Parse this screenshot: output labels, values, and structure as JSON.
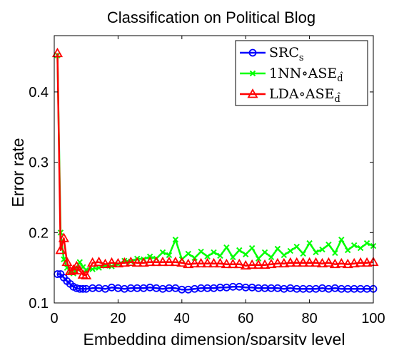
{
  "chart_data": {
    "type": "line",
    "title": "Classification on Political Blog",
    "xlabel": "Embedding dimension/sparsity level",
    "ylabel": "Error rate",
    "xlim": [
      0,
      100
    ],
    "ylim": [
      0.1,
      0.48
    ],
    "xticks": [
      0,
      20,
      40,
      60,
      80,
      100
    ],
    "xtick_labels": [
      "0",
      "20",
      "40",
      "60",
      "80",
      "100"
    ],
    "yticks": [
      0.1,
      0.2,
      0.3,
      0.4
    ],
    "ytick_labels": [
      "0.1",
      "0.2",
      "0.3",
      "0.4"
    ],
    "grid": false,
    "legend_position": "top-right",
    "series": [
      {
        "name": "SRC",
        "name_subscript": "s",
        "color": "#0000ff",
        "marker": "circle",
        "x": [
          1,
          2,
          3,
          4,
          5,
          6,
          7,
          8,
          9,
          10,
          12,
          14,
          16,
          18,
          20,
          22,
          24,
          26,
          28,
          30,
          32,
          34,
          36,
          38,
          40,
          42,
          44,
          46,
          48,
          50,
          52,
          54,
          56,
          58,
          60,
          62,
          64,
          66,
          68,
          70,
          72,
          74,
          76,
          78,
          80,
          82,
          84,
          86,
          88,
          90,
          92,
          94,
          96,
          98,
          100
        ],
        "y": [
          0.141,
          0.141,
          0.136,
          0.131,
          0.127,
          0.123,
          0.121,
          0.12,
          0.12,
          0.12,
          0.121,
          0.121,
          0.12,
          0.122,
          0.121,
          0.12,
          0.121,
          0.121,
          0.121,
          0.122,
          0.121,
          0.12,
          0.121,
          0.121,
          0.119,
          0.119,
          0.12,
          0.121,
          0.121,
          0.121,
          0.122,
          0.122,
          0.123,
          0.123,
          0.122,
          0.122,
          0.121,
          0.121,
          0.121,
          0.121,
          0.12,
          0.121,
          0.12,
          0.12,
          0.12,
          0.12,
          0.121,
          0.12,
          0.121,
          0.12,
          0.12,
          0.12,
          0.12,
          0.12,
          0.12
        ]
      },
      {
        "name": "1NN∘ASE",
        "name_subscript": "d̂",
        "color": "#00ff00",
        "marker": "x",
        "x": [
          1,
          2,
          3,
          4,
          5,
          6,
          7,
          8,
          9,
          10,
          12,
          14,
          16,
          18,
          20,
          22,
          24,
          26,
          28,
          30,
          32,
          34,
          36,
          38,
          40,
          42,
          44,
          46,
          48,
          50,
          52,
          54,
          56,
          58,
          60,
          62,
          64,
          66,
          68,
          70,
          72,
          74,
          76,
          78,
          80,
          82,
          84,
          86,
          88,
          90,
          92,
          94,
          96,
          98,
          100
        ],
        "y": [
          0.452,
          0.2,
          0.162,
          0.15,
          0.145,
          0.142,
          0.149,
          0.158,
          0.151,
          0.147,
          0.148,
          0.15,
          0.153,
          0.152,
          0.155,
          0.16,
          0.159,
          0.163,
          0.162,
          0.166,
          0.163,
          0.172,
          0.168,
          0.19,
          0.162,
          0.17,
          0.164,
          0.173,
          0.166,
          0.172,
          0.167,
          0.179,
          0.165,
          0.175,
          0.169,
          0.178,
          0.163,
          0.172,
          0.165,
          0.177,
          0.168,
          0.174,
          0.18,
          0.17,
          0.185,
          0.172,
          0.176,
          0.183,
          0.171,
          0.19,
          0.175,
          0.182,
          0.178,
          0.185,
          0.181
        ]
      },
      {
        "name": "LDA∘ASE",
        "name_subscript": "d̂",
        "color": "#ff0000",
        "marker": "triangle",
        "x": [
          1,
          2,
          3,
          4,
          5,
          6,
          7,
          8,
          9,
          10,
          12,
          14,
          16,
          18,
          20,
          22,
          24,
          26,
          28,
          30,
          32,
          34,
          36,
          38,
          40,
          42,
          44,
          46,
          48,
          50,
          52,
          54,
          56,
          58,
          60,
          62,
          64,
          66,
          68,
          70,
          72,
          74,
          76,
          78,
          80,
          82,
          84,
          86,
          88,
          90,
          92,
          94,
          96,
          98,
          100
        ],
        "y": [
          0.455,
          0.175,
          0.192,
          0.158,
          0.145,
          0.147,
          0.152,
          0.146,
          0.14,
          0.139,
          0.157,
          0.158,
          0.155,
          0.157,
          0.156,
          0.157,
          0.158,
          0.157,
          0.157,
          0.158,
          0.158,
          0.158,
          0.158,
          0.158,
          0.157,
          0.155,
          0.156,
          0.156,
          0.156,
          0.156,
          0.156,
          0.155,
          0.155,
          0.155,
          0.153,
          0.154,
          0.154,
          0.154,
          0.155,
          0.156,
          0.156,
          0.157,
          0.157,
          0.157,
          0.157,
          0.157,
          0.156,
          0.157,
          0.155,
          0.156,
          0.155,
          0.156,
          0.157,
          0.157,
          0.158
        ]
      }
    ]
  }
}
